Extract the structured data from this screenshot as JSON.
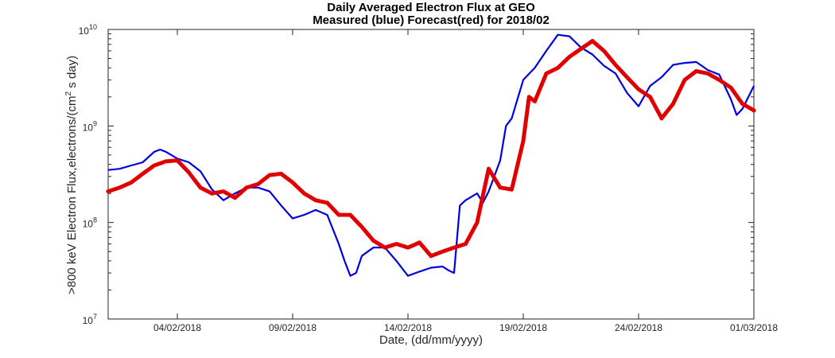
{
  "chart_data": {
    "type": "line",
    "title": "Daily Averaged Electron Flux at GEO",
    "subtitle": "Measured (blue) Forecast(red) for 2018/02",
    "xlabel": "Date, (dd/mm/yyyy)",
    "ylabel_parts": [
      ">800 keV Electron Flux,electrons/(cm",
      "2",
      " s day)"
    ],
    "y_scale": "log",
    "ylim": [
      10000000,
      10000000000
    ],
    "y_tick_bases": [
      "10",
      "10",
      "10",
      "10"
    ],
    "y_tick_exponents": [
      "7",
      "8",
      "9",
      "10"
    ],
    "y_tick_values": [
      10000000,
      100000000,
      1000000000,
      10000000000
    ],
    "xlim": [
      "2018-02-01",
      "2018-03-01"
    ],
    "x_tick_labels": [
      "04/02/2018",
      "09/02/2018",
      "14/02/2018",
      "19/02/2018",
      "24/02/2018",
      "01/03/2018"
    ],
    "x_tick_dates": [
      "2018-02-04",
      "2018-02-09",
      "2018-02-14",
      "2018-02-19",
      "2018-02-24",
      "2018-03-01"
    ],
    "series": [
      {
        "color": "#0000e0",
        "style": "line",
        "x": [
          "2018-02-01",
          "2018-02-01 12:00",
          "2018-02-02",
          "2018-02-02 12:00",
          "2018-02-03",
          "2018-02-03 06:00",
          "2018-02-03 12:00",
          "2018-02-04",
          "2018-02-04 12:00",
          "2018-02-05",
          "2018-02-05 12:00",
          "2018-02-06",
          "2018-02-06 12:00",
          "2018-02-07",
          "2018-02-07 12:00",
          "2018-02-08",
          "2018-02-08 12:00",
          "2018-02-09",
          "2018-02-09 12:00",
          "2018-02-10",
          "2018-02-10 12:00",
          "2018-02-11",
          "2018-02-11 06:00",
          "2018-02-11 12:00",
          "2018-02-11 18:00",
          "2018-02-12",
          "2018-02-12 12:00",
          "2018-02-13",
          "2018-02-13 12:00",
          "2018-02-14",
          "2018-02-14 12:00",
          "2018-02-15",
          "2018-02-15 12:00",
          "2018-02-15 18:00",
          "2018-02-16",
          "2018-02-16 06:00",
          "2018-02-16 12:00",
          "2018-02-17",
          "2018-02-17 06:00",
          "2018-02-17 12:00",
          "2018-02-18",
          "2018-02-18 06:00",
          "2018-02-18 12:00",
          "2018-02-19",
          "2018-02-19 12:00",
          "2018-02-20",
          "2018-02-20 12:00",
          "2018-02-21",
          "2018-02-21 12:00",
          "2018-02-22",
          "2018-02-22 12:00",
          "2018-02-23",
          "2018-02-23 12:00",
          "2018-02-24",
          "2018-02-24 12:00",
          "2018-02-25",
          "2018-02-25 12:00",
          "2018-02-26",
          "2018-02-26 12:00",
          "2018-02-27",
          "2018-02-27 12:00",
          "2018-02-28",
          "2018-02-28 06:00",
          "2018-02-28 12:00",
          "2018-03-01"
        ],
        "y": [
          350000000,
          360000000,
          390000000,
          420000000,
          540000000,
          570000000,
          540000000,
          460000000,
          420000000,
          340000000,
          220000000,
          170000000,
          200000000,
          230000000,
          230000000,
          210000000,
          150000000,
          110000000,
          120000000,
          135000000,
          120000000,
          60000000,
          40000000,
          28000000,
          30000000,
          45000000,
          55000000,
          55000000,
          40000000,
          28000000,
          31000000,
          34000000,
          35000000,
          32000000,
          30000000,
          150000000,
          170000000,
          200000000,
          160000000,
          210000000,
          440000000,
          1000000000,
          1200000000,
          3000000000,
          4000000000,
          6000000000,
          8800000000,
          8500000000,
          6500000000,
          5500000000,
          4200000000,
          3500000000,
          2200000000,
          1600000000,
          2600000000,
          3200000000,
          4300000000,
          4500000000,
          4600000000,
          3800000000,
          3400000000,
          1900000000,
          1300000000,
          1500000000,
          2600000000
        ]
      },
      {
        "color": "#e00000",
        "style": "dots",
        "x": [
          "2018-02-01",
          "2018-02-01 12:00",
          "2018-02-02",
          "2018-02-02 12:00",
          "2018-02-03",
          "2018-02-03 12:00",
          "2018-02-04",
          "2018-02-04 12:00",
          "2018-02-05",
          "2018-02-05 12:00",
          "2018-02-06",
          "2018-02-06 12:00",
          "2018-02-07",
          "2018-02-07 12:00",
          "2018-02-08",
          "2018-02-08 12:00",
          "2018-02-09",
          "2018-02-09 12:00",
          "2018-02-10",
          "2018-02-10 12:00",
          "2018-02-11",
          "2018-02-11 12:00",
          "2018-02-12",
          "2018-02-12 12:00",
          "2018-02-13",
          "2018-02-13 12:00",
          "2018-02-14",
          "2018-02-14 12:00",
          "2018-02-15",
          "2018-02-15 12:00",
          "2018-02-16",
          "2018-02-16 12:00",
          "2018-02-17",
          "2018-02-17 06:00",
          "2018-02-17 12:00",
          "2018-02-18",
          "2018-02-18 12:00",
          "2018-02-19",
          "2018-02-19 06:00",
          "2018-02-19 12:00",
          "2018-02-20",
          "2018-02-20 12:00",
          "2018-02-21",
          "2018-02-21 12:00",
          "2018-02-22",
          "2018-02-22 12:00",
          "2018-02-23",
          "2018-02-23 12:00",
          "2018-02-24",
          "2018-02-24 12:00",
          "2018-02-25",
          "2018-02-25 12:00",
          "2018-02-26",
          "2018-02-26 12:00",
          "2018-02-27",
          "2018-02-27 12:00",
          "2018-02-28",
          "2018-02-28 12:00",
          "2018-03-01"
        ],
        "y": [
          210000000,
          230000000,
          260000000,
          320000000,
          390000000,
          430000000,
          440000000,
          330000000,
          230000000,
          200000000,
          210000000,
          180000000,
          230000000,
          250000000,
          310000000,
          320000000,
          260000000,
          200000000,
          170000000,
          160000000,
          120000000,
          120000000,
          90000000,
          65000000,
          55000000,
          60000000,
          55000000,
          62000000,
          45000000,
          50000000,
          55000000,
          60000000,
          100000000,
          190000000,
          360000000,
          230000000,
          220000000,
          700000000,
          2000000000,
          1800000000,
          3500000000,
          4000000000,
          5200000000,
          6300000000,
          7600000000,
          6000000000,
          4300000000,
          3200000000,
          2400000000,
          2000000000,
          1200000000,
          1700000000,
          3000000000,
          3700000000,
          3500000000,
          3000000000,
          2500000000,
          1700000000,
          1450000000
        ]
      }
    ]
  }
}
